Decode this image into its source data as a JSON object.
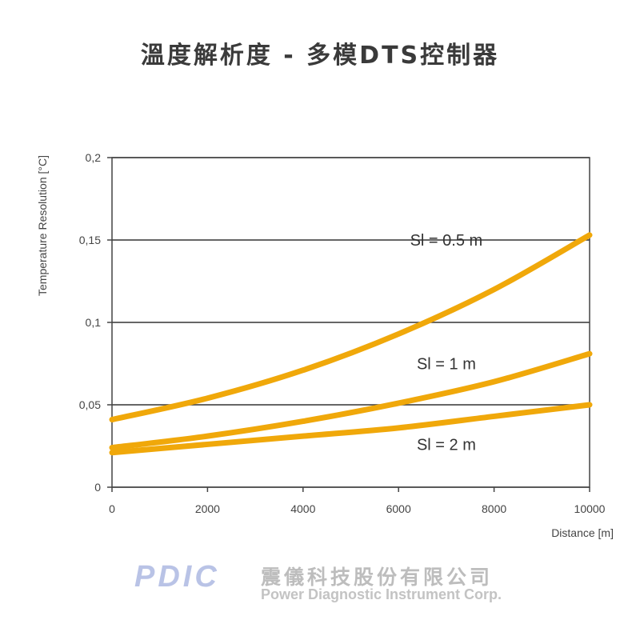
{
  "page": {
    "title": "溫度解析度 - 多模DTS控制器"
  },
  "colors": {
    "curve": "#f0a80a",
    "grid": "#333333",
    "logo": "#b9c3e6",
    "footer_text": "#bdbdbd"
  },
  "chart_data": {
    "type": "line",
    "title": "溫度解析度 - 多模DTS控制器",
    "xlabel": "Distance [m]",
    "ylabel": "Temperature Resolution [°C]",
    "xlim": [
      0,
      10000
    ],
    "ylim": [
      0,
      0.2
    ],
    "x_ticks": [
      0,
      2000,
      4000,
      6000,
      8000,
      10000
    ],
    "x_tick_labels": [
      "0",
      "2000",
      "4000",
      "6000",
      "8000",
      "10000"
    ],
    "y_ticks": [
      0,
      0.05,
      0.1,
      0.15,
      0.2
    ],
    "y_tick_labels": [
      "0",
      "0,05",
      "0,1",
      "0,15",
      "0,2"
    ],
    "grid": "horizontal",
    "x": [
      0,
      2000,
      4000,
      6000,
      8000,
      10000
    ],
    "series": [
      {
        "name": "Sl = 0.5 m",
        "values": [
          0.041,
          0.054,
          0.071,
          0.093,
          0.12,
          0.153
        ]
      },
      {
        "name": "Sl = 1 m",
        "values": [
          0.024,
          0.031,
          0.04,
          0.051,
          0.064,
          0.081
        ]
      },
      {
        "name": "Sl = 2 m",
        "values": [
          0.021,
          0.026,
          0.031,
          0.036,
          0.043,
          0.05
        ]
      }
    ],
    "annotations": [
      "Sl = 0.5 m",
      "Sl = 1 m",
      "Sl = 2 m"
    ]
  },
  "footer": {
    "logo": "PDIC",
    "company_zh": "震儀科技股份有限公司",
    "company_en": "Power Diagnostic Instrument Corp."
  }
}
